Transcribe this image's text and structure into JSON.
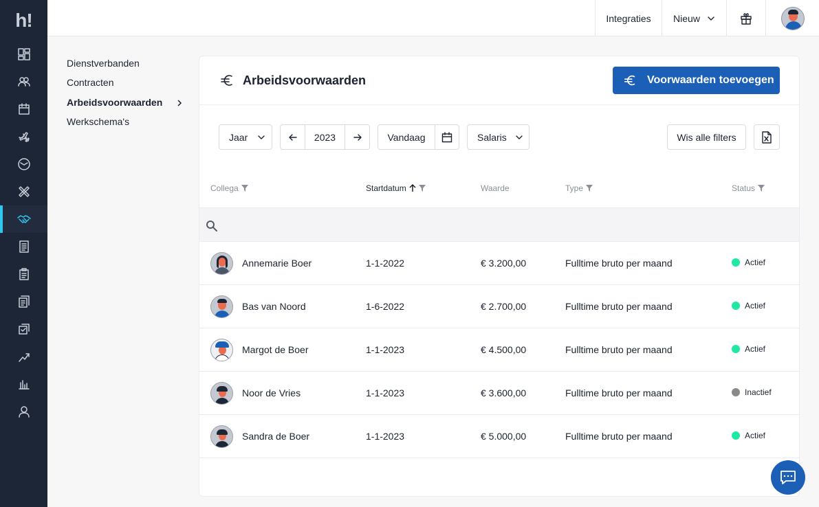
{
  "app": {
    "logo_text": "h!"
  },
  "sidebar": {
    "items": [
      {
        "icon": "dashboard-icon"
      },
      {
        "icon": "people-icon"
      },
      {
        "icon": "calendar-icon"
      },
      {
        "icon": "plane-icon"
      },
      {
        "icon": "clock-icon"
      },
      {
        "icon": "bandage-icon"
      },
      {
        "icon": "handshake-icon",
        "active": true
      },
      {
        "icon": "receipt-icon"
      },
      {
        "icon": "clipboard-icon"
      },
      {
        "icon": "documents-icon"
      },
      {
        "icon": "checklist-icon"
      },
      {
        "icon": "growth-icon"
      },
      {
        "icon": "bar-chart-icon"
      },
      {
        "icon": "user-icon"
      }
    ],
    "accent_color": "#2fc6f0"
  },
  "topbar": {
    "integrations_label": "Integraties",
    "new_label": "Nieuw"
  },
  "subnav": {
    "items": [
      {
        "label": "Dienstverbanden"
      },
      {
        "label": "Contracten"
      },
      {
        "label": "Arbeidsvoorwaarden"
      },
      {
        "label": "Werkschema's"
      }
    ]
  },
  "main": {
    "title": "Arbeidsvoorwaarden",
    "add_button_label": "Voorwaarden toevoegen",
    "primary_color": "#1c5fb7"
  },
  "filters": {
    "period_label": "Jaar",
    "year": "2023",
    "today_label": "Vandaag",
    "type_label": "Salaris",
    "clear_label": "Wis alle filters"
  },
  "table": {
    "columns": [
      "Collega",
      "Startdatum",
      "Waarde",
      "Type",
      "Status"
    ],
    "rows": [
      {
        "name": "Annemarie Boer",
        "start": "1-1-2022",
        "value": "€ 3.200,00",
        "type": "Fulltime bruto per maand",
        "status": "Actief",
        "status_color": "#1ee8a2"
      },
      {
        "name": "Bas van Noord",
        "start": "1-6-2022",
        "value": "€ 2.700,00",
        "type": "Fulltime bruto per maand",
        "status": "Actief",
        "status_color": "#1ee8a2"
      },
      {
        "name": "Margot de Boer",
        "start": "1-1-2023",
        "value": "€ 4.500,00",
        "type": "Fulltime bruto per maand",
        "status": "Actief",
        "status_color": "#1ee8a2"
      },
      {
        "name": "Noor de Vries",
        "start": "1-1-2023",
        "value": "€ 3.600,00",
        "type": "Fulltime bruto per maand",
        "status": "Inactief",
        "status_color": "#8a8a8a"
      },
      {
        "name": "Sandra de Boer",
        "start": "1-1-2023",
        "value": "€ 5.000,00",
        "type": "Fulltime bruto per maand",
        "status": "Actief",
        "status_color": "#1ee8a2"
      }
    ]
  }
}
